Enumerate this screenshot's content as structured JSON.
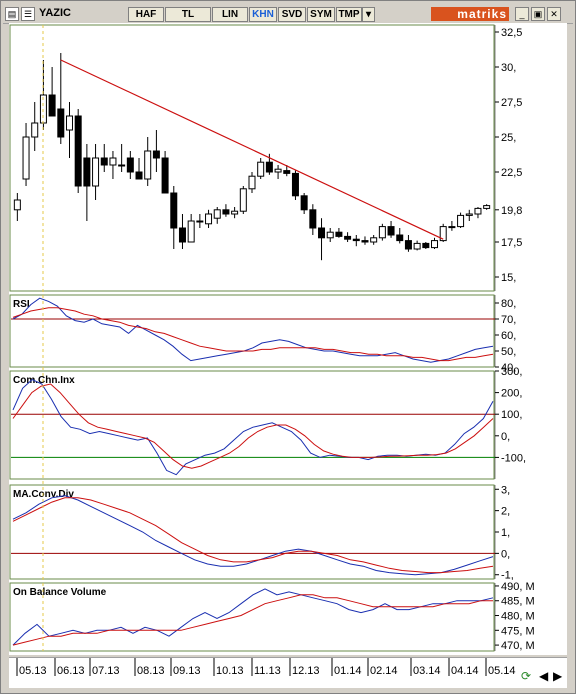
{
  "toolbar": {
    "symbol": "YAZIC",
    "buttons": [
      "HAF",
      "TL",
      "LIN",
      "KHN",
      "SVD",
      "SYM",
      "TMP"
    ],
    "active_button": "KHN",
    "brand": "matriks"
  },
  "colors": {
    "candle_up": "#ffffff",
    "candle_down": "#000000",
    "trend_line": "#cc1010",
    "rsi_line": "#1a2fb0",
    "signal_line": "#cc1010",
    "ref_line_red": "#990000",
    "ref_line_green": "#008000",
    "cursor_line": "#e6c94a"
  },
  "chart_data": [
    {
      "type": "candlestick",
      "title": "",
      "ylim": [
        14,
        33
      ],
      "yticks": [
        "32,5",
        "30,",
        "27,5",
        "25,",
        "22,5",
        "19,8",
        "17,5",
        "15,"
      ],
      "ytick_values": [
        32.5,
        30,
        27.5,
        25,
        22.5,
        19.8,
        17.5,
        15
      ],
      "candles": [
        {
          "o": 19.8,
          "h": 21.0,
          "l": 19.0,
          "c": 20.5
        },
        {
          "o": 22.0,
          "h": 26.0,
          "l": 21.5,
          "c": 25.0
        },
        {
          "o": 25.0,
          "h": 27.5,
          "l": 24.0,
          "c": 26.0
        },
        {
          "o": 26.0,
          "h": 30.5,
          "l": 25.5,
          "c": 28.0
        },
        {
          "o": 28.0,
          "h": 30.0,
          "l": 26.5,
          "c": 26.5
        },
        {
          "o": 27.0,
          "h": 31.0,
          "l": 24.5,
          "c": 25.0
        },
        {
          "o": 25.5,
          "h": 27.5,
          "l": 23.5,
          "c": 26.5
        },
        {
          "o": 26.5,
          "h": 27.0,
          "l": 21.0,
          "c": 21.5
        },
        {
          "o": 23.5,
          "h": 24.5,
          "l": 19.0,
          "c": 21.5
        },
        {
          "o": 21.5,
          "h": 24.5,
          "l": 20.5,
          "c": 23.5
        },
        {
          "o": 23.5,
          "h": 24.5,
          "l": 22.5,
          "c": 23.0
        },
        {
          "o": 23.0,
          "h": 24.0,
          "l": 22.0,
          "c": 23.5
        },
        {
          "o": 23.0,
          "h": 24.5,
          "l": 22.5,
          "c": 23.0
        },
        {
          "o": 23.5,
          "h": 24.0,
          "l": 22.0,
          "c": 22.5
        },
        {
          "o": 22.5,
          "h": 23.5,
          "l": 22.0,
          "c": 22.0
        },
        {
          "o": 22.0,
          "h": 25.0,
          "l": 21.5,
          "c": 24.0
        },
        {
          "o": 24.0,
          "h": 25.5,
          "l": 22.5,
          "c": 23.5
        },
        {
          "o": 23.5,
          "h": 24.0,
          "l": 21.0,
          "c": 21.0
        },
        {
          "o": 21.0,
          "h": 21.5,
          "l": 17.0,
          "c": 18.5
        },
        {
          "o": 18.5,
          "h": 19.5,
          "l": 17.0,
          "c": 17.5
        },
        {
          "o": 17.5,
          "h": 19.5,
          "l": 17.5,
          "c": 19.0
        },
        {
          "o": 19.0,
          "h": 19.5,
          "l": 18.5,
          "c": 19.0
        },
        {
          "o": 18.8,
          "h": 19.8,
          "l": 18.5,
          "c": 19.5
        },
        {
          "o": 19.2,
          "h": 20.0,
          "l": 18.8,
          "c": 19.8
        },
        {
          "o": 19.8,
          "h": 20.2,
          "l": 19.3,
          "c": 19.5
        },
        {
          "o": 19.5,
          "h": 20.0,
          "l": 19.2,
          "c": 19.7
        },
        {
          "o": 19.7,
          "h": 21.5,
          "l": 19.5,
          "c": 21.3
        },
        {
          "o": 21.3,
          "h": 22.5,
          "l": 21.0,
          "c": 22.2
        },
        {
          "o": 22.2,
          "h": 23.5,
          "l": 22.0,
          "c": 23.2
        },
        {
          "o": 23.2,
          "h": 23.8,
          "l": 22.3,
          "c": 22.5
        },
        {
          "o": 22.5,
          "h": 23.0,
          "l": 22.0,
          "c": 22.7
        },
        {
          "o": 22.6,
          "h": 23.0,
          "l": 22.2,
          "c": 22.4
        },
        {
          "o": 22.4,
          "h": 22.6,
          "l": 20.5,
          "c": 20.8
        },
        {
          "o": 20.8,
          "h": 21.0,
          "l": 19.5,
          "c": 19.8
        },
        {
          "o": 19.8,
          "h": 20.2,
          "l": 18.0,
          "c": 18.5
        },
        {
          "o": 18.5,
          "h": 19.2,
          "l": 16.2,
          "c": 17.8
        },
        {
          "o": 17.8,
          "h": 18.5,
          "l": 17.5,
          "c": 18.2
        },
        {
          "o": 18.2,
          "h": 18.5,
          "l": 17.8,
          "c": 17.9
        },
        {
          "o": 17.9,
          "h": 18.2,
          "l": 17.5,
          "c": 17.7
        },
        {
          "o": 17.7,
          "h": 18.0,
          "l": 17.2,
          "c": 17.6
        },
        {
          "o": 17.6,
          "h": 17.9,
          "l": 17.3,
          "c": 17.5
        },
        {
          "o": 17.5,
          "h": 18.0,
          "l": 17.3,
          "c": 17.8
        },
        {
          "o": 17.8,
          "h": 18.8,
          "l": 17.6,
          "c": 18.6
        },
        {
          "o": 18.6,
          "h": 19.0,
          "l": 17.8,
          "c": 18.0
        },
        {
          "o": 18.0,
          "h": 18.5,
          "l": 17.4,
          "c": 17.6
        },
        {
          "o": 17.6,
          "h": 18.0,
          "l": 16.8,
          "c": 17.0
        },
        {
          "o": 17.0,
          "h": 17.6,
          "l": 16.9,
          "c": 17.4
        },
        {
          "o": 17.4,
          "h": 17.5,
          "l": 17.0,
          "c": 17.1
        },
        {
          "o": 17.1,
          "h": 17.8,
          "l": 17.0,
          "c": 17.6
        },
        {
          "o": 17.6,
          "h": 18.8,
          "l": 17.5,
          "c": 18.6
        },
        {
          "o": 18.6,
          "h": 19.0,
          "l": 18.3,
          "c": 18.6
        },
        {
          "o": 18.6,
          "h": 19.6,
          "l": 18.5,
          "c": 19.4
        },
        {
          "o": 19.4,
          "h": 19.8,
          "l": 19.0,
          "c": 19.5
        },
        {
          "o": 19.5,
          "h": 20.0,
          "l": 19.2,
          "c": 19.9
        },
        {
          "o": 19.9,
          "h": 20.2,
          "l": 19.8,
          "c": 20.1
        }
      ],
      "trendline": {
        "from": [
          5,
          30.5
        ],
        "to": [
          49,
          17.7
        ]
      },
      "xticks": [
        "05.13",
        "06.13",
        "07.13",
        "08.13",
        "09.13",
        "10.13",
        "11.13",
        "12.13",
        "01.14",
        "02.14",
        "03.14",
        "04.14",
        "05.14"
      ]
    },
    {
      "type": "line",
      "title": "RSI",
      "ylim": [
        40,
        85
      ],
      "yticks": [
        "80,",
        "70,",
        "60,",
        "50,",
        "40,"
      ],
      "ytick_values": [
        80,
        70,
        60,
        50,
        40
      ],
      "reference_lines": [
        70
      ],
      "series": [
        {
          "values": [
            70,
            73,
            79,
            83,
            81,
            78,
            72,
            69,
            68,
            70,
            67,
            66,
            65,
            61,
            66,
            63,
            60,
            57,
            53,
            48,
            44,
            45,
            46,
            47,
            48,
            49,
            50,
            52,
            55,
            56,
            57,
            56,
            54,
            52,
            51,
            50,
            50,
            49,
            48,
            47,
            47,
            47,
            48,
            49,
            47,
            45,
            44,
            43,
            44,
            45,
            47,
            49,
            51,
            52,
            53
          ]
        },
        {
          "values": [
            71,
            73,
            75,
            76,
            77,
            77,
            76,
            75,
            73,
            72,
            70,
            69,
            68,
            66,
            65,
            64,
            62,
            61,
            59,
            57,
            55,
            53,
            52,
            51,
            50,
            50,
            50,
            50,
            51,
            51,
            52,
            52,
            52,
            52,
            52,
            51,
            51,
            50,
            49,
            49,
            48,
            48,
            47,
            47,
            47,
            46,
            46,
            45,
            44,
            44,
            45,
            46,
            46,
            47,
            48
          ]
        }
      ]
    },
    {
      "type": "line",
      "title": "Com.Chn.Inx",
      "ylim": [
        -200,
        300
      ],
      "yticks": [
        "300,",
        "200,",
        "100,",
        "0,",
        "-100,"
      ],
      "ytick_values": [
        300,
        200,
        100,
        0,
        -100
      ],
      "reference_lines": [
        100,
        -100
      ],
      "series": [
        {
          "values": [
            120,
            220,
            260,
            240,
            170,
            90,
            40,
            30,
            10,
            20,
            10,
            0,
            -10,
            -20,
            -10,
            -80,
            -160,
            -180,
            -130,
            -110,
            -90,
            -80,
            -60,
            -20,
            20,
            40,
            50,
            60,
            40,
            20,
            -20,
            -80,
            -100,
            -90,
            -95,
            -100,
            -100,
            -110,
            -95,
            -90,
            -90,
            -95,
            -90,
            -85,
            -90,
            -80,
            -40,
            10,
            40,
            80,
            160
          ]
        },
        {
          "values": [
            80,
            140,
            200,
            230,
            240,
            200,
            150,
            100,
            60,
            40,
            30,
            20,
            10,
            0,
            -10,
            -30,
            -70,
            -110,
            -140,
            -150,
            -140,
            -120,
            -100,
            -80,
            -50,
            -10,
            20,
            40,
            50,
            50,
            30,
            0,
            -40,
            -70,
            -85,
            -95,
            -100,
            -100,
            -100,
            -98,
            -95,
            -94,
            -92,
            -90,
            -90,
            -87,
            -80,
            -60,
            -30,
            0,
            40,
            80
          ]
        }
      ]
    },
    {
      "type": "line",
      "title": "MA.Conv.Div",
      "ylim": [
        -1.2,
        3.2
      ],
      "yticks": [
        "3,",
        "2,",
        "1,",
        "0,",
        "-1,"
      ],
      "ytick_values": [
        3,
        2,
        1,
        0,
        -1
      ],
      "reference_lines": [
        0
      ],
      "series": [
        {
          "values": [
            1.6,
            1.9,
            2.3,
            2.6,
            2.7,
            2.5,
            2.2,
            1.9,
            1.6,
            1.3,
            1.0,
            0.6,
            0.3,
            0.0,
            -0.3,
            -0.5,
            -0.6,
            -0.6,
            -0.5,
            -0.3,
            -0.1,
            0.1,
            0.2,
            0.1,
            -0.1,
            -0.3,
            -0.5,
            -0.6,
            -0.8,
            -0.9,
            -0.95,
            -1.0,
            -0.95,
            -0.9,
            -0.75,
            -0.55,
            -0.35,
            -0.15
          ]
        },
        {
          "values": [
            1.5,
            1.8,
            2.1,
            2.4,
            2.6,
            2.6,
            2.5,
            2.3,
            2.1,
            1.9,
            1.6,
            1.3,
            0.9,
            0.5,
            0.2,
            -0.1,
            -0.3,
            -0.4,
            -0.4,
            -0.3,
            -0.2,
            0.0,
            0.1,
            0.1,
            0.0,
            -0.1,
            -0.3,
            -0.4,
            -0.55,
            -0.7,
            -0.8,
            -0.85,
            -0.9,
            -0.9,
            -0.85,
            -0.8,
            -0.7,
            -0.6
          ]
        }
      ]
    },
    {
      "type": "line",
      "title": "On Balance Volume",
      "ylim": [
        468,
        491
      ],
      "yticks": [
        "490, M",
        "485, M",
        "480, M",
        "475, M",
        "470, M"
      ],
      "ytick_values": [
        490,
        485,
        480,
        475,
        470
      ],
      "series": [
        {
          "values": [
            470,
            474,
            477,
            473,
            474,
            475,
            474,
            475,
            475,
            476,
            474,
            476,
            475,
            473,
            476,
            479,
            481,
            479,
            481,
            484,
            487,
            489,
            487,
            488,
            487,
            486,
            485,
            484,
            482,
            481,
            482,
            484,
            482,
            482,
            483,
            484,
            484,
            485,
            485,
            485,
            486
          ]
        },
        {
          "values": [
            470,
            471,
            472,
            473,
            473,
            474,
            474,
            474,
            475,
            475,
            475,
            475,
            475,
            475,
            475,
            476,
            477,
            478,
            479,
            480,
            482,
            484,
            485,
            486,
            487,
            487,
            486,
            486,
            485,
            484,
            483,
            483,
            483,
            483,
            483,
            483,
            484,
            484,
            484,
            485,
            485
          ]
        }
      ]
    }
  ]
}
